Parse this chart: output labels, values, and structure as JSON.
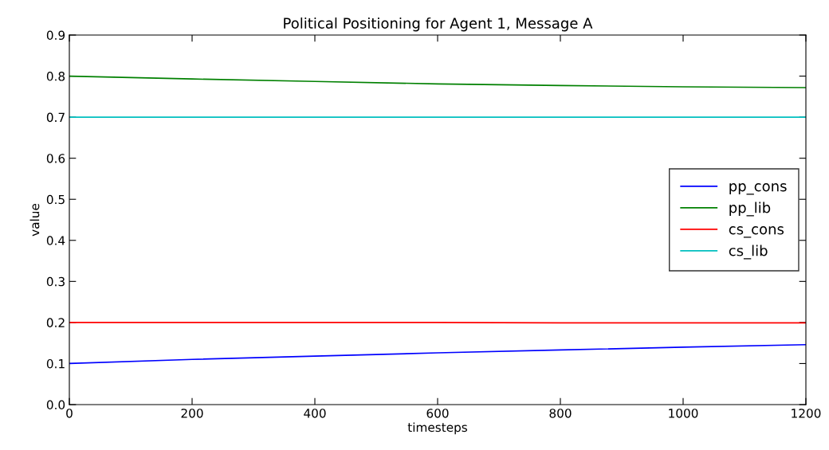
{
  "chart_data": {
    "type": "line",
    "title": "Political Positioning for Agent 1, Message A",
    "xlabel": "timesteps",
    "ylabel": "value",
    "x": [
      0,
      200,
      400,
      600,
      800,
      1000,
      1200
    ],
    "series": [
      {
        "name": "pp_cons",
        "color": "#0000ff",
        "values": [
          0.1,
          0.11,
          0.118,
          0.126,
          0.133,
          0.14,
          0.146
        ]
      },
      {
        "name": "pp_lib",
        "color": "#008000",
        "values": [
          0.8,
          0.793,
          0.787,
          0.781,
          0.777,
          0.774,
          0.772
        ]
      },
      {
        "name": "cs_cons",
        "color": "#ff0000",
        "values": [
          0.2,
          0.2,
          0.2,
          0.2,
          0.199,
          0.199,
          0.199
        ]
      },
      {
        "name": "cs_lib",
        "color": "#00bfbf",
        "values": [
          0.7,
          0.7,
          0.7,
          0.7,
          0.7,
          0.7,
          0.7
        ]
      }
    ],
    "xlim": [
      0,
      1200
    ],
    "xticks": [
      0,
      200,
      400,
      600,
      800,
      1000,
      1200
    ],
    "ylim": [
      0.0,
      0.9
    ],
    "yticks": [
      {
        "value": 0.0,
        "label": "0.0"
      },
      0.1,
      0.2,
      0.3,
      0.4,
      0.5,
      0.6,
      0.7,
      0.8,
      0.9
    ],
    "legend": "right",
    "grid": false
  }
}
